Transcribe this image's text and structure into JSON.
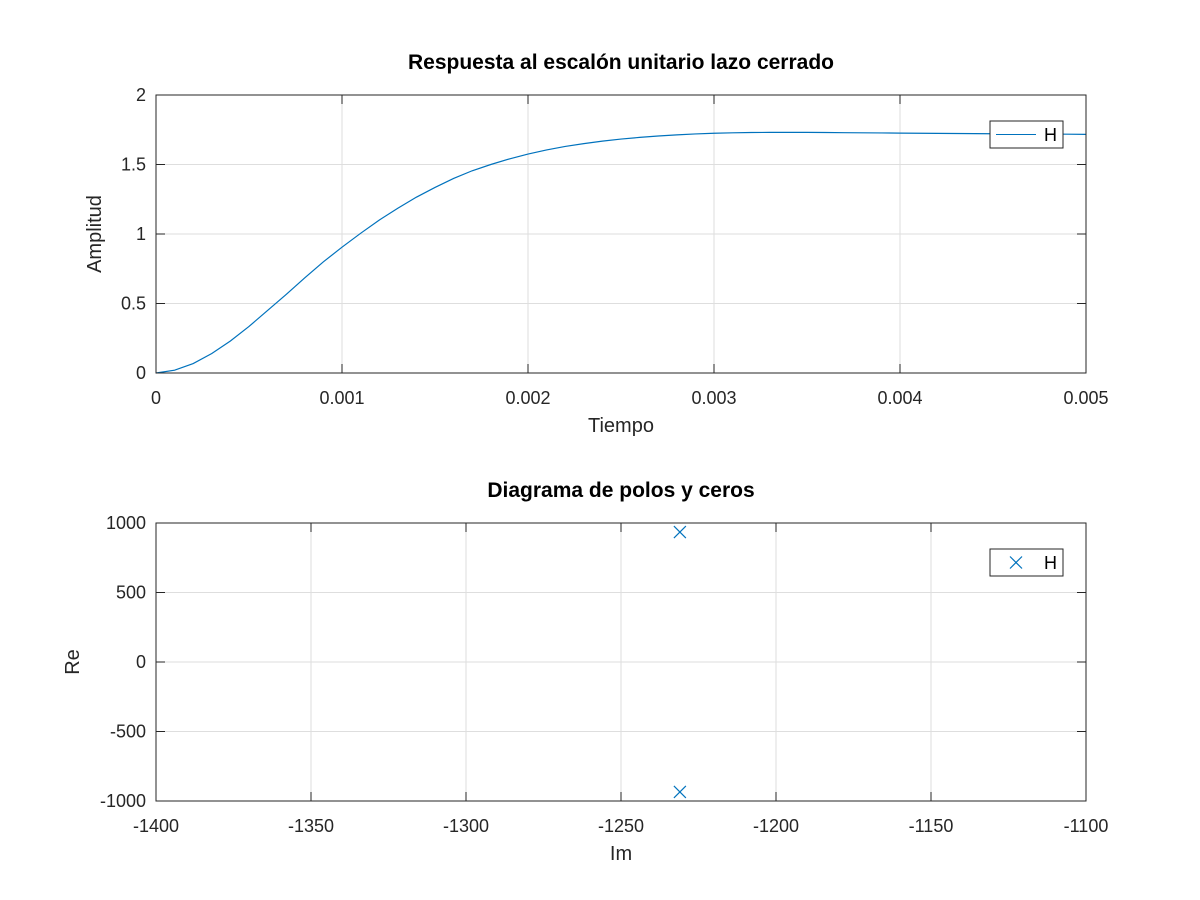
{
  "chart_data": [
    {
      "type": "line",
      "title": "Respuesta al escalón unitario lazo cerrado",
      "xlabel": "Tiempo",
      "ylabel": "Amplitud",
      "xlim": [
        0,
        0.005
      ],
      "ylim": [
        0,
        2
      ],
      "grid": true,
      "xticks": [
        "0",
        "0.001",
        "0.002",
        "0.003",
        "0.004",
        "0.005"
      ],
      "yticks": [
        "0",
        "0.5",
        "1",
        "1.5",
        "2"
      ],
      "legend": {
        "position": "top-right",
        "entries": [
          "H"
        ]
      },
      "series": [
        {
          "name": "H",
          "color": "#0072BD",
          "x": [
            0,
            0.0001,
            0.0002,
            0.0003,
            0.0004,
            0.0005,
            0.0006,
            0.0007,
            0.0008,
            0.0009,
            0.001,
            0.0011,
            0.0012,
            0.0013,
            0.0014,
            0.0015,
            0.0016,
            0.0017,
            0.0018,
            0.0019,
            0.002,
            0.0021,
            0.0022,
            0.0023,
            0.0024,
            0.0025,
            0.0026,
            0.0027,
            0.0028,
            0.0029,
            0.003,
            0.0031,
            0.0032,
            0.0033,
            0.0034,
            0.0035,
            0.0036,
            0.0037,
            0.0038,
            0.0039,
            0.004,
            0.0041,
            0.0042,
            0.0043,
            0.0044,
            0.0045,
            0.0046,
            0.0047,
            0.0048,
            0.0049,
            0.005
          ],
          "values": [
            0,
            0.02,
            0.068,
            0.14,
            0.23,
            0.335,
            0.45,
            0.565,
            0.685,
            0.8,
            0.905,
            1.005,
            1.1,
            1.185,
            1.265,
            1.335,
            1.4,
            1.455,
            1.5,
            1.54,
            1.575,
            1.605,
            1.63,
            1.65,
            1.668,
            1.683,
            1.695,
            1.705,
            1.713,
            1.72,
            1.725,
            1.728,
            1.73,
            1.731,
            1.731,
            1.731,
            1.73,
            1.729,
            1.728,
            1.727,
            1.726,
            1.725,
            1.724,
            1.723,
            1.722,
            1.721,
            1.72,
            1.72,
            1.719,
            1.718,
            1.717
          ]
        }
      ]
    },
    {
      "type": "scatter",
      "title": "Diagrama de polos y ceros",
      "xlabel": "Im",
      "ylabel": "Re",
      "xlim": [
        -1400,
        -1100
      ],
      "ylim": [
        -1000,
        1000
      ],
      "grid": true,
      "xticks": [
        "-1400",
        "-1350",
        "-1300",
        "-1250",
        "-1200",
        "-1150",
        "-1100"
      ],
      "yticks": [
        "-1000",
        "-500",
        "0",
        "500",
        "1000"
      ],
      "legend": {
        "position": "top-right",
        "entries": [
          "H"
        ]
      },
      "series": [
        {
          "name": "H",
          "marker": "x",
          "color": "#0072BD",
          "points": [
            {
              "x": -1231,
              "y": 935
            },
            {
              "x": -1231,
              "y": -935
            }
          ]
        }
      ]
    }
  ]
}
